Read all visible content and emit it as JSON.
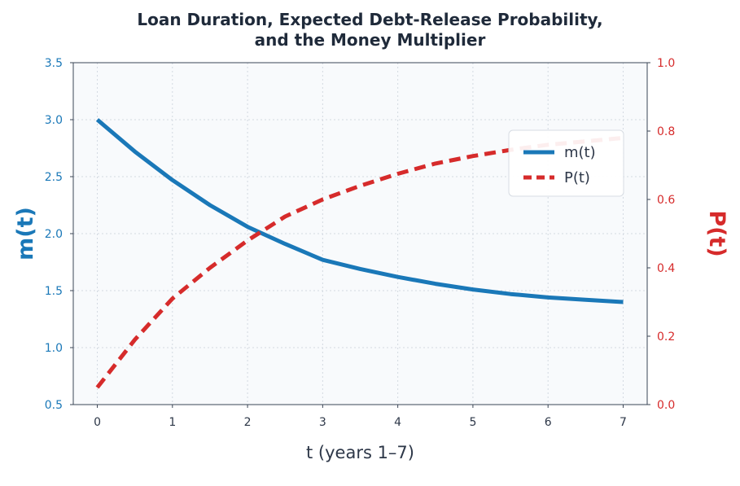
{
  "chart_data": {
    "type": "line",
    "title_line1": "Loan Duration, Expected Debt-Release Probability,",
    "title_line2": "and the Money Multiplier",
    "xlabel": "t (years 1–7)",
    "ylabel_left": "m(t)",
    "ylabel_right": "P(t)",
    "xlim": [
      -0.32,
      7.32
    ],
    "ylim_left": [
      0.5,
      3.5
    ],
    "ylim_right": [
      0.0,
      1.0
    ],
    "x_ticks": [
      0,
      1,
      2,
      3,
      4,
      5,
      6,
      7
    ],
    "y_ticks_left": [
      "0.5",
      "1.0",
      "1.5",
      "2.0",
      "2.5",
      "3.0",
      "3.5"
    ],
    "y_ticks_right": [
      "0.0",
      "0.2",
      "0.4",
      "0.6",
      "0.8",
      "1.0"
    ],
    "grid": true,
    "legend_position": "upper-right",
    "series": [
      {
        "name": "m(t)",
        "axis": "left",
        "color": "#1a78b8",
        "style": "solid",
        "x": [
          0,
          0.5,
          1,
          1.5,
          2,
          2.5,
          3,
          3.5,
          4,
          4.5,
          5,
          5.5,
          6,
          6.5,
          7
        ],
        "values": [
          3.0,
          2.72,
          2.47,
          2.25,
          2.06,
          1.91,
          1.77,
          1.69,
          1.62,
          1.56,
          1.51,
          1.47,
          1.44,
          1.42,
          1.4
        ]
      },
      {
        "name": "P(t)",
        "axis": "right",
        "color": "#d62b2b",
        "style": "dashed",
        "x": [
          0,
          0.5,
          1,
          1.5,
          2,
          2.5,
          3,
          3.5,
          4,
          4.5,
          5,
          5.5,
          6,
          6.5,
          7
        ],
        "values": [
          0.05,
          0.19,
          0.31,
          0.4,
          0.48,
          0.55,
          0.6,
          0.64,
          0.675,
          0.705,
          0.727,
          0.745,
          0.76,
          0.77,
          0.78
        ]
      }
    ]
  }
}
